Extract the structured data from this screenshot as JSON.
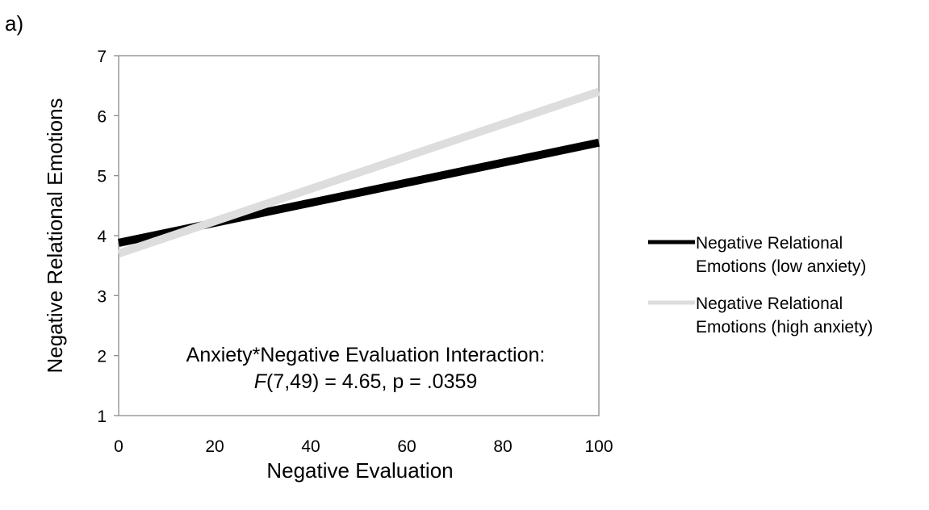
{
  "panel_label": "a)",
  "chart_data": {
    "type": "line",
    "xlabel": "Negative Evaluation",
    "ylabel": "Negative Relational Emotions",
    "xlim": [
      0,
      100
    ],
    "ylim": [
      1,
      7
    ],
    "xticks": [
      "0",
      "20",
      "40",
      "60",
      "80",
      "100"
    ],
    "yticks": [
      "1",
      "2",
      "3",
      "4",
      "5",
      "6",
      "7"
    ],
    "grid": false,
    "legend_position": "right",
    "series": [
      {
        "name": "Negative Relational Emotions (low anxiety)",
        "name_lines": [
          "Negative Relational",
          "Emotions (low anxiety)"
        ],
        "color": "#000000",
        "x": [
          0,
          100
        ],
        "y": [
          3.88,
          5.55
        ]
      },
      {
        "name": "Negative Relational Emotions (high anxiety)",
        "name_lines": [
          "Negative Relational",
          "Emotions (high anxiety)"
        ],
        "color": "#dddddd",
        "x": [
          0,
          100
        ],
        "y": [
          3.7,
          6.4
        ]
      }
    ],
    "annotation": {
      "line1": "Anxiety*Negative Evaluation Interaction:",
      "line2_italic": "F",
      "line2_rest": "(7,49) = 4.65, p = .0359"
    }
  }
}
